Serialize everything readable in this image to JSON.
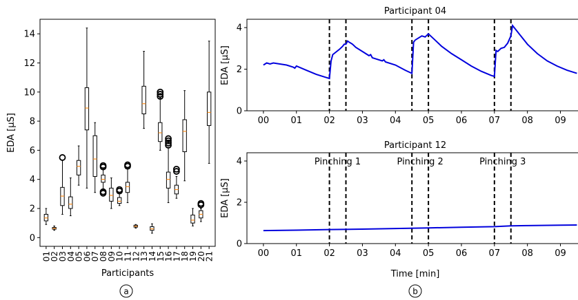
{
  "chart_data": [
    {
      "type": "box",
      "ylabel": "EDA [μS]",
      "xlabel": "Participants",
      "ylim": [
        -0.6,
        15.0
      ],
      "yticks": [
        0,
        2,
        4,
        6,
        8,
        10,
        12,
        14
      ],
      "categories": [
        "01",
        "02",
        "03",
        "04",
        "05",
        "06",
        "07",
        "08",
        "09",
        "10",
        "11",
        "12",
        "13",
        "14",
        "15",
        "16",
        "17",
        "18",
        "19",
        "20",
        "21"
      ],
      "boxes": [
        {
          "whislo": 0.9,
          "q1": 1.15,
          "med": 1.35,
          "q3": 1.6,
          "whishi": 2.0,
          "fliers": []
        },
        {
          "whislo": 0.5,
          "q1": 0.58,
          "med": 0.63,
          "q3": 0.7,
          "whishi": 0.8,
          "fliers": []
        },
        {
          "whislo": 1.6,
          "q1": 2.2,
          "med": 2.85,
          "q3": 3.45,
          "whishi": 5.3,
          "fliers": [
            5.5
          ]
        },
        {
          "whislo": 1.5,
          "q1": 2.0,
          "med": 2.3,
          "q3": 2.8,
          "whishi": 4.1,
          "fliers": []
        },
        {
          "whislo": 3.6,
          "q1": 4.3,
          "med": 4.9,
          "q3": 5.3,
          "whishi": 6.3,
          "fliers": []
        },
        {
          "whislo": 3.4,
          "q1": 7.4,
          "med": 8.9,
          "q3": 10.3,
          "whishi": 14.4,
          "fliers": []
        },
        {
          "whislo": 3.1,
          "q1": 4.2,
          "med": 5.4,
          "q3": 7.0,
          "whishi": 7.9,
          "fliers": []
        },
        {
          "whislo": 3.3,
          "q1": 3.8,
          "med": 4.0,
          "q3": 4.3,
          "whishi": 4.8,
          "fliers": [
            3.05,
            3.15,
            4.85,
            4.95
          ]
        },
        {
          "whislo": 2.0,
          "q1": 2.5,
          "med": 2.9,
          "q3": 3.4,
          "whishi": 4.1,
          "fliers": []
        },
        {
          "whislo": 2.2,
          "q1": 2.35,
          "med": 2.5,
          "q3": 2.75,
          "whishi": 3.1,
          "fliers": [
            3.2,
            3.3
          ]
        },
        {
          "whislo": 2.4,
          "q1": 3.1,
          "med": 3.5,
          "q3": 3.8,
          "whishi": 4.8,
          "fliers": [
            4.9,
            5.0
          ]
        },
        {
          "whislo": 0.65,
          "q1": 0.72,
          "med": 0.78,
          "q3": 0.85,
          "whishi": 0.9,
          "fliers": []
        },
        {
          "whislo": 7.5,
          "q1": 8.5,
          "med": 9.2,
          "q3": 10.4,
          "whishi": 12.8,
          "fliers": []
        },
        {
          "whislo": 0.3,
          "q1": 0.5,
          "med": 0.6,
          "q3": 0.75,
          "whishi": 0.95,
          "fliers": []
        },
        {
          "whislo": 6.0,
          "q1": 6.6,
          "med": 7.2,
          "q3": 7.9,
          "whishi": 9.6,
          "fliers": [
            9.7,
            9.85,
            10.0
          ]
        },
        {
          "whislo": 2.4,
          "q1": 3.4,
          "med": 4.0,
          "q3": 4.5,
          "whishi": 6.2,
          "fliers": [
            6.35,
            6.5,
            6.65,
            6.8
          ]
        },
        {
          "whislo": 2.7,
          "q1": 3.0,
          "med": 3.3,
          "q3": 3.6,
          "whishi": 4.2,
          "fliers": [
            4.55,
            4.7
          ]
        },
        {
          "whislo": 3.9,
          "q1": 5.9,
          "med": 7.3,
          "q3": 8.1,
          "whishi": 10.1,
          "fliers": []
        },
        {
          "whislo": 0.8,
          "q1": 1.0,
          "med": 1.2,
          "q3": 1.55,
          "whishi": 2.0,
          "fliers": []
        },
        {
          "whislo": 1.1,
          "q1": 1.35,
          "med": 1.6,
          "q3": 1.85,
          "whishi": 2.0,
          "fliers": [
            2.25,
            2.35
          ]
        },
        {
          "whislo": 5.1,
          "q1": 7.7,
          "med": 8.6,
          "q3": 10.0,
          "whishi": 13.5,
          "fliers": []
        }
      ],
      "panel_label": "a"
    },
    {
      "type": "line",
      "title": "Participant 04",
      "ylabel": "EDA [μS]",
      "xlim": [
        -0.5,
        9.7
      ],
      "ylim": [
        0,
        4.4
      ],
      "xticks": [
        0,
        1,
        2,
        3,
        4,
        5,
        6,
        7,
        8,
        9
      ],
      "xticklabels": [
        "00",
        "01",
        "02",
        "03",
        "04",
        "05",
        "06",
        "07",
        "08",
        "09"
      ],
      "yticks": [
        0,
        2,
        4
      ],
      "vlines": [
        2.0,
        2.5,
        4.5,
        5.0,
        7.0,
        7.5
      ],
      "color": "#0000dd",
      "x": [
        0,
        0.1,
        0.2,
        0.3,
        0.5,
        0.7,
        0.9,
        0.95,
        1.0,
        1.3,
        1.6,
        1.8,
        2.0,
        2.05,
        2.1,
        2.3,
        2.4,
        2.45,
        2.5,
        2.55,
        2.6,
        2.7,
        2.8,
        3.0,
        3.2,
        3.25,
        3.3,
        3.6,
        3.65,
        3.7,
        4.0,
        4.3,
        4.5,
        4.55,
        4.6,
        4.7,
        4.8,
        4.9,
        5.0,
        5.2,
        5.4,
        5.7,
        6.0,
        6.3,
        6.6,
        6.9,
        7.0,
        7.05,
        7.1,
        7.2,
        7.3,
        7.4,
        7.5,
        7.55,
        7.6,
        7.8,
        8.0,
        8.3,
        8.6,
        8.9,
        9.2,
        9.5
      ],
      "y": [
        2.2,
        2.3,
        2.25,
        2.3,
        2.25,
        2.2,
        2.1,
        2.05,
        2.15,
        1.95,
        1.75,
        1.65,
        1.55,
        2.4,
        2.7,
        2.95,
        3.1,
        3.2,
        3.2,
        3.35,
        3.3,
        3.2,
        3.05,
        2.85,
        2.65,
        2.7,
        2.55,
        2.4,
        2.45,
        2.35,
        2.2,
        1.95,
        1.8,
        3.3,
        3.4,
        3.5,
        3.6,
        3.55,
        3.7,
        3.4,
        3.1,
        2.75,
        2.45,
        2.15,
        1.9,
        1.7,
        1.65,
        2.9,
        2.85,
        3.0,
        3.05,
        3.25,
        3.6,
        4.1,
        4.0,
        3.6,
        3.2,
        2.75,
        2.4,
        2.15,
        1.95,
        1.8
      ],
      "panel_label": "b"
    },
    {
      "type": "line",
      "title": "Participant 12",
      "ylabel": "EDA [μS]",
      "xlabel": "Time [min]",
      "xlim": [
        -0.5,
        9.7
      ],
      "ylim": [
        0,
        4.4
      ],
      "xticks": [
        0,
        1,
        2,
        3,
        4,
        5,
        6,
        7,
        8,
        9
      ],
      "xticklabels": [
        "00",
        "01",
        "02",
        "03",
        "04",
        "05",
        "06",
        "07",
        "08",
        "09"
      ],
      "yticks": [
        0,
        2,
        4
      ],
      "vlines": [
        2.0,
        2.5,
        4.5,
        5.0,
        7.0,
        7.5
      ],
      "annotations": [
        {
          "text": "Pinching 1",
          "x": 2.25,
          "y": 4.0
        },
        {
          "text": "Pinching 2",
          "x": 4.75,
          "y": 4.0
        },
        {
          "text": "Pinching 3",
          "x": 7.25,
          "y": 4.0
        }
      ],
      "color": "#0000dd",
      "x": [
        0,
        1,
        2,
        3,
        4,
        5,
        6,
        7,
        7.5,
        8,
        9,
        9.5
      ],
      "y": [
        0.63,
        0.65,
        0.68,
        0.7,
        0.73,
        0.76,
        0.79,
        0.82,
        0.86,
        0.87,
        0.89,
        0.9
      ]
    }
  ]
}
